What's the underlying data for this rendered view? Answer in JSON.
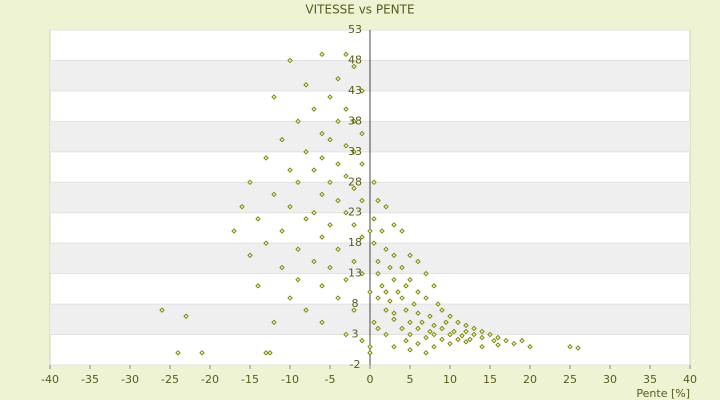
{
  "chart_data": {
    "type": "scatter",
    "title": "VITESSE vs PENTE",
    "x_label": "Pente [%]",
    "xlim": [
      -40,
      40
    ],
    "xticks": [
      -40,
      -35,
      -30,
      -25,
      -20,
      -15,
      -10,
      -5,
      0,
      5,
      10,
      15,
      20,
      25,
      30,
      35,
      40
    ],
    "ylim": [
      -2,
      53
    ],
    "yticks": [
      -2,
      3,
      8,
      13,
      18,
      23,
      28,
      33,
      38,
      43,
      48,
      53
    ],
    "grid": true,
    "x": [
      -10,
      -6,
      -3,
      -2,
      -4,
      -8,
      -12,
      -5,
      -1,
      -7,
      -3,
      -9,
      -4,
      -2,
      -6,
      -1,
      -11,
      -5,
      -3,
      -8,
      -2,
      -13,
      -6,
      -4,
      -1,
      -10,
      -7,
      -3,
      -15,
      -9,
      -5,
      -2,
      -12,
      -6,
      -4,
      -1,
      -16,
      -10,
      -7,
      -3,
      -14,
      -8,
      -5,
      -2,
      -17,
      -11,
      -6,
      -1,
      -13,
      -9,
      -4,
      -15,
      -7,
      -2,
      -11,
      -5,
      -1,
      -9,
      -3,
      -14,
      -6,
      -10,
      -4,
      -8,
      -2,
      -6,
      -12,
      -26,
      -23,
      -24,
      -21,
      -13,
      -12.5,
      -3,
      -1,
      0.5,
      1,
      2,
      0.5,
      1.5,
      3,
      4,
      0.5,
      2,
      3,
      5,
      1,
      2.5,
      4,
      6,
      1,
      3,
      5,
      7,
      1.5,
      2,
      3.5,
      4.5,
      6,
      8,
      1,
      2.5,
      4,
      5.5,
      7,
      8.5,
      2,
      3,
      4.5,
      6,
      7.5,
      9,
      10,
      3,
      5,
      6.5,
      8,
      9.5,
      11,
      12,
      4,
      6,
      7.5,
      9,
      10.5,
      12,
      13,
      14,
      5,
      8,
      10,
      11.5,
      13,
      15,
      16,
      7,
      9,
      11,
      12.5,
      14,
      15.5,
      17,
      18,
      20,
      25,
      26,
      6,
      8,
      10,
      12,
      2,
      1,
      0.5,
      3,
      7,
      5,
      14,
      16,
      19,
      4.5,
      0,
      0,
      0,
      0
    ],
    "series": [
      {
        "name": "Vitesse",
        "color": "#6b7300",
        "values": [
          48,
          49,
          49,
          47,
          45,
          44,
          42,
          42,
          43,
          40,
          40,
          38,
          38,
          38,
          36,
          36,
          35,
          35,
          34,
          33,
          33,
          32,
          32,
          31,
          31,
          30,
          30,
          29,
          28,
          28,
          28,
          27,
          26,
          26,
          25,
          25,
          24,
          24,
          23,
          23,
          22,
          22,
          21,
          21,
          20,
          20,
          19,
          19,
          18,
          17,
          17,
          16,
          15,
          15,
          14,
          14,
          13,
          12,
          12,
          11,
          11,
          9,
          9,
          7,
          7,
          5,
          5,
          7,
          6,
          0,
          0,
          0,
          0,
          3,
          2,
          28,
          25,
          24,
          22,
          20,
          21,
          20,
          18,
          17,
          16,
          16,
          15,
          14,
          14,
          15,
          13,
          12,
          12,
          13,
          11,
          10,
          10,
          11,
          10,
          11,
          9,
          8.5,
          9,
          8,
          9,
          8,
          7,
          6.5,
          7,
          6.5,
          6,
          7,
          6,
          5.5,
          5,
          5,
          4.5,
          5,
          5,
          4.5,
          4,
          4,
          3.5,
          4,
          3.5,
          3.5,
          4,
          3.5,
          3,
          3,
          3,
          2.8,
          3,
          3,
          2.5,
          2.5,
          2.2,
          2.2,
          2.2,
          2.5,
          2,
          2,
          1.5,
          1,
          1,
          0.8,
          1.5,
          1,
          1.5,
          1.8,
          3,
          4,
          5,
          1,
          0,
          0.5,
          1,
          1.3,
          2,
          2,
          0,
          1,
          10,
          20
        ]
      }
    ]
  }
}
